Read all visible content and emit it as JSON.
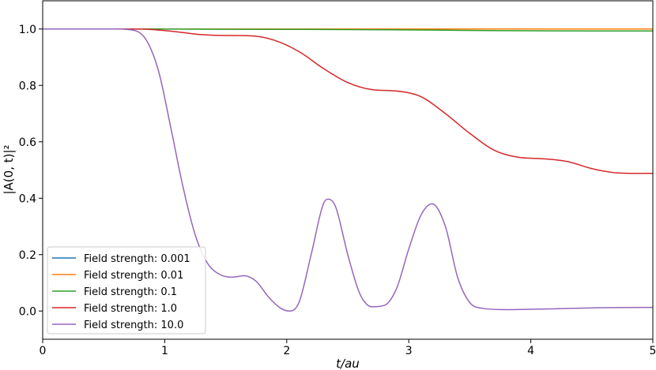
{
  "chart_data": {
    "type": "line",
    "xlabel": "t/au",
    "ylabel": "|A(0, t)|²",
    "xlim": [
      0,
      5
    ],
    "ylim": [
      -0.1,
      1.1
    ],
    "xticks": [
      "0",
      "1",
      "2",
      "3",
      "4",
      "5"
    ],
    "yticks": [
      "0.0",
      "0.2",
      "0.4",
      "0.6",
      "0.8",
      "1.0"
    ],
    "grid": false,
    "legend_position": "lower-left",
    "series": [
      {
        "name": "Field strength: 0.001",
        "color": "#1f77b4",
        "x": [
          0,
          1,
          2,
          3,
          4,
          5
        ],
        "y": [
          1.0,
          1.0,
          1.0,
          1.0,
          1.0,
          1.0
        ]
      },
      {
        "name": "Field strength: 0.01",
        "color": "#ff7f0e",
        "x": [
          0,
          1,
          2,
          3,
          4,
          5
        ],
        "y": [
          1.0,
          1.0,
          1.0,
          1.0,
          1.0,
          1.0
        ]
      },
      {
        "name": "Field strength: 0.1",
        "color": "#2ca02c",
        "x": [
          0,
          0.8,
          1.5,
          2.5,
          3.2,
          3.8,
          4.5,
          5.0
        ],
        "y": [
          1.0,
          1.0,
          0.999,
          0.998,
          0.996,
          0.994,
          0.993,
          0.993
        ]
      },
      {
        "name": "Field strength: 1.0",
        "color": "#d62728",
        "x": [
          0,
          0.7,
          0.9,
          1.1,
          1.3,
          1.5,
          1.7,
          1.9,
          2.1,
          2.3,
          2.5,
          2.7,
          2.9,
          3.1,
          3.3,
          3.5,
          3.7,
          3.9,
          4.1,
          4.3,
          4.5,
          4.7,
          4.9,
          5.0
        ],
        "y": [
          1.0,
          1.0,
          0.998,
          0.99,
          0.98,
          0.977,
          0.976,
          0.96,
          0.92,
          0.86,
          0.81,
          0.785,
          0.78,
          0.76,
          0.7,
          0.63,
          0.57,
          0.545,
          0.54,
          0.53,
          0.505,
          0.49,
          0.488,
          0.488
        ]
      },
      {
        "name": "Field strength: 10.0",
        "color": "#9467bd",
        "x": [
          0,
          0.6,
          0.75,
          0.85,
          0.95,
          1.05,
          1.15,
          1.25,
          1.35,
          1.45,
          1.55,
          1.65,
          1.75,
          1.85,
          1.95,
          2.02,
          2.1,
          2.2,
          2.3,
          2.34,
          2.4,
          2.5,
          2.6,
          2.7,
          2.8,
          2.9,
          3.0,
          3.1,
          3.19,
          3.3,
          3.4,
          3.5,
          3.6,
          3.8,
          4.2,
          4.6,
          5.0
        ],
        "y": [
          1.0,
          1.0,
          0.995,
          0.96,
          0.85,
          0.65,
          0.44,
          0.27,
          0.17,
          0.13,
          0.12,
          0.125,
          0.105,
          0.05,
          0.01,
          0.0,
          0.03,
          0.2,
          0.38,
          0.397,
          0.37,
          0.2,
          0.06,
          0.015,
          0.02,
          0.08,
          0.22,
          0.34,
          0.38,
          0.3,
          0.12,
          0.03,
          0.01,
          0.005,
          0.008,
          0.012,
          0.013
        ]
      }
    ]
  }
}
